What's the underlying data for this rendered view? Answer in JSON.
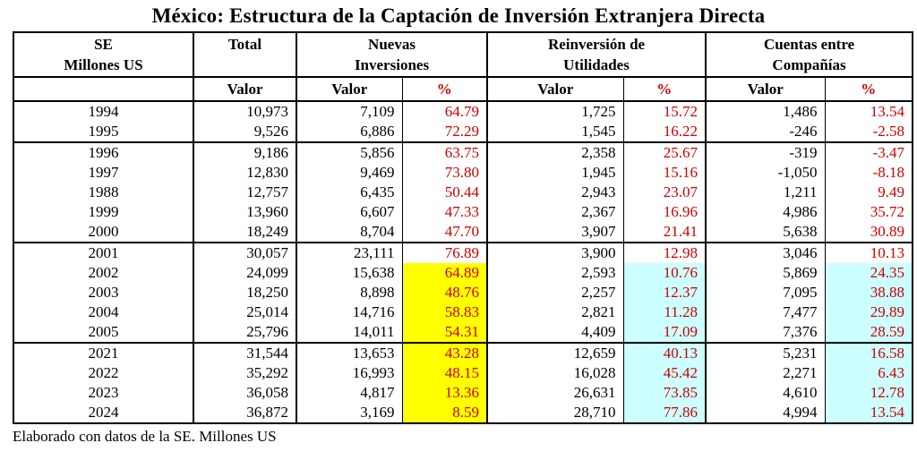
{
  "title": "México: Estructura de la Captación de Inversión Extranjera Directa",
  "footer": "Elaborado con datos de la SE. Millones US",
  "colors": {
    "percent_text": "#CC0000",
    "highlight_yellow": "#FFFF00",
    "highlight_cyan": "#CCFFFF",
    "border": "#000000",
    "background": "#FFFFFF"
  },
  "table": {
    "header": {
      "se_line1": "SE",
      "se_line2": "Millones US",
      "total": "Total",
      "nuevas_line1": "Nuevas",
      "nuevas_line2": "Inversiones",
      "reinversion_line1": "Reinversión de",
      "reinversion_line2": "Utilidades",
      "cuentas_line1": "Cuentas entre",
      "cuentas_line2": "Compañías",
      "valor": "Valor",
      "pct": "%"
    },
    "groups": [
      {
        "rows": [
          {
            "year": "1994",
            "total": "10,973",
            "ni_valor": "7,109",
            "ni_pct": "64.79",
            "ru_valor": "1,725",
            "ru_pct": "15.72",
            "cc_valor": "1,486",
            "cc_pct": "13.54",
            "highlight": false
          },
          {
            "year": "1995",
            "total": "9,526",
            "ni_valor": "6,886",
            "ni_pct": "72.29",
            "ru_valor": "1,545",
            "ru_pct": "16.22",
            "cc_valor": "-246",
            "cc_pct": "-2.58",
            "highlight": false
          }
        ]
      },
      {
        "rows": [
          {
            "year": "1996",
            "total": "9,186",
            "ni_valor": "5,856",
            "ni_pct": "63.75",
            "ru_valor": "2,358",
            "ru_pct": "25.67",
            "cc_valor": "-319",
            "cc_pct": "-3.47",
            "highlight": false
          },
          {
            "year": "1997",
            "total": "12,830",
            "ni_valor": "9,469",
            "ni_pct": "73.80",
            "ru_valor": "1,945",
            "ru_pct": "15.16",
            "cc_valor": "-1,050",
            "cc_pct": "-8.18",
            "highlight": false
          },
          {
            "year": "1988",
            "total": "12,757",
            "ni_valor": "6,435",
            "ni_pct": "50.44",
            "ru_valor": "2,943",
            "ru_pct": "23.07",
            "cc_valor": "1,211",
            "cc_pct": "9.49",
            "highlight": false
          },
          {
            "year": "1999",
            "total": "13,960",
            "ni_valor": "6,607",
            "ni_pct": "47.33",
            "ru_valor": "2,367",
            "ru_pct": "16.96",
            "cc_valor": "4,986",
            "cc_pct": "35.72",
            "highlight": false
          },
          {
            "year": "2000",
            "total": "18,249",
            "ni_valor": "8,704",
            "ni_pct": "47.70",
            "ru_valor": "3,907",
            "ru_pct": "21.41",
            "cc_valor": "5,638",
            "cc_pct": "30.89",
            "highlight": false
          }
        ]
      },
      {
        "rows": [
          {
            "year": "2001",
            "total": "30,057",
            "ni_valor": "23,111",
            "ni_pct": "76.89",
            "ru_valor": "3,900",
            "ru_pct": "12.98",
            "cc_valor": "3,046",
            "cc_pct": "10.13",
            "highlight": false
          },
          {
            "year": "2002",
            "total": "24,099",
            "ni_valor": "15,638",
            "ni_pct": "64.89",
            "ru_valor": "2,593",
            "ru_pct": "10.76",
            "cc_valor": "5,869",
            "cc_pct": "24.35",
            "highlight": true
          },
          {
            "year": "2003",
            "total": "18,250",
            "ni_valor": "8,898",
            "ni_pct": "48.76",
            "ru_valor": "2,257",
            "ru_pct": "12.37",
            "cc_valor": "7,095",
            "cc_pct": "38.88",
            "highlight": true
          },
          {
            "year": "2004",
            "total": "25,014",
            "ni_valor": "14,716",
            "ni_pct": "58.83",
            "ru_valor": "2,821",
            "ru_pct": "11.28",
            "cc_valor": "7,477",
            "cc_pct": "29.89",
            "highlight": true
          },
          {
            "year": "2005",
            "total": "25,796",
            "ni_valor": "14,011",
            "ni_pct": "54.31",
            "ru_valor": "4,409",
            "ru_pct": "17.09",
            "cc_valor": "7,376",
            "cc_pct": "28.59",
            "highlight": true
          }
        ]
      },
      {
        "rows": [
          {
            "year": "2021",
            "total": "31,544",
            "ni_valor": "13,653",
            "ni_pct": "43.28",
            "ru_valor": "12,659",
            "ru_pct": "40.13",
            "cc_valor": "5,231",
            "cc_pct": "16.58",
            "highlight": true
          },
          {
            "year": "2022",
            "total": "35,292",
            "ni_valor": "16,993",
            "ni_pct": "48.15",
            "ru_valor": "16,028",
            "ru_pct": "45.42",
            "cc_valor": "2,271",
            "cc_pct": "6.43",
            "highlight": true
          },
          {
            "year": "2023",
            "total": "36,058",
            "ni_valor": "4,817",
            "ni_pct": "13.36",
            "ru_valor": "26,631",
            "ru_pct": "73.85",
            "cc_valor": "4,610",
            "cc_pct": "12.78",
            "highlight": true
          },
          {
            "year": "2024",
            "total": "36,872",
            "ni_valor": "3,169",
            "ni_pct": "8.59",
            "ru_valor": "28,710",
            "ru_pct": "77.86",
            "cc_valor": "4,994",
            "cc_pct": "13.54",
            "highlight": true
          }
        ]
      }
    ]
  }
}
